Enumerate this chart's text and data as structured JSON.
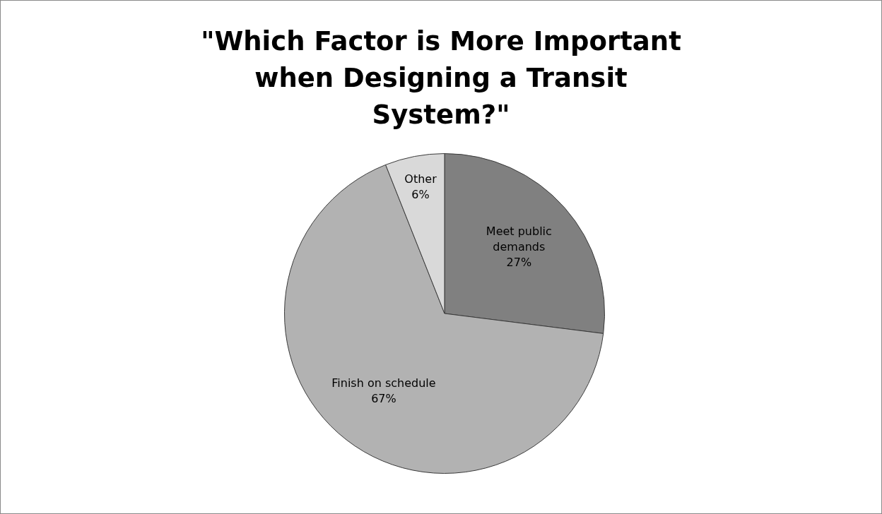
{
  "chart_data": {
    "type": "pie",
    "title": "\"Which Factor is More Important when Designing a Transit System?\"",
    "categories": [
      "Meet public demands",
      "Finish on schedule",
      "Other"
    ],
    "values": [
      27,
      67,
      6
    ],
    "colors": [
      "#808080",
      "#b2b2b2",
      "#d9d9d9"
    ],
    "value_labels": [
      "27%",
      "67%",
      "6%"
    ],
    "legend": false
  }
}
